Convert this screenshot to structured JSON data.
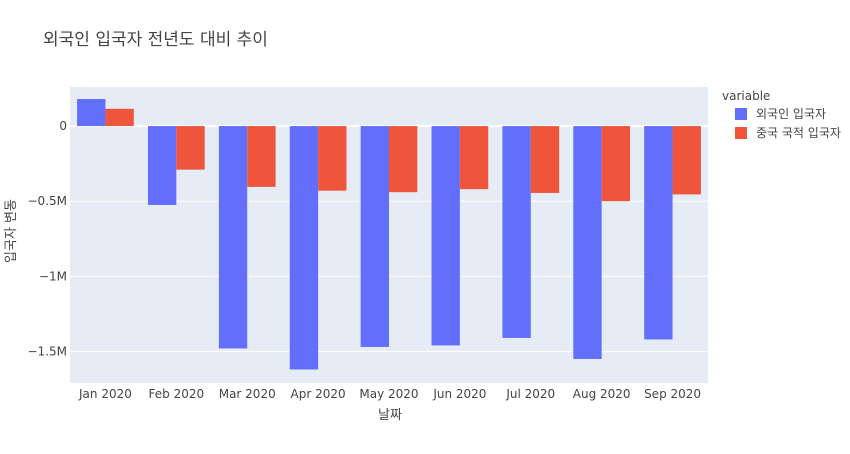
{
  "chart_data": {
    "type": "bar",
    "title": "외국인 입국자 전년도 대비 추이",
    "xlabel": "날짜",
    "ylabel": "입국자 변동",
    "categories": [
      "Jan 2020",
      "Feb 2020",
      "Mar 2020",
      "Apr 2020",
      "May 2020",
      "Jun 2020",
      "Jul 2020",
      "Aug 2020",
      "Sep 2020"
    ],
    "series": [
      {
        "name": "외국인 입국자",
        "color": "#636efa",
        "values": [
          180000,
          -525000,
          -1480000,
          -1620000,
          -1470000,
          -1460000,
          -1410000,
          -1550000,
          -1420000
        ]
      },
      {
        "name": "중국 국적 입국자",
        "color": "#ef553b",
        "values": [
          115000,
          -290000,
          -405000,
          -430000,
          -440000,
          -420000,
          -445000,
          -500000,
          -455000
        ]
      }
    ],
    "yticks": [
      0,
      -500000,
      -1000000,
      -1500000
    ],
    "ytick_labels": [
      "0",
      "−0.5M",
      "−1M",
      "−1.5M"
    ],
    "ylim": [
      -1710000,
      260000
    ],
    "legend": {
      "title": "variable",
      "position": "top-right"
    },
    "plot_background": "#e5ecf6",
    "grid": true
  }
}
